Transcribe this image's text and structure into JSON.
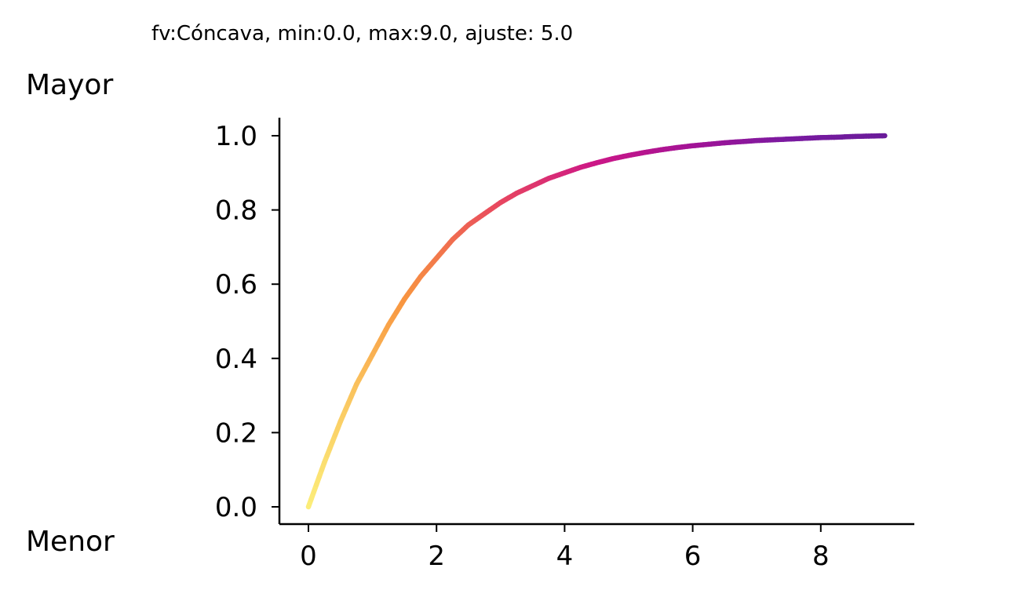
{
  "header": {
    "title": "fv:Cóncava, min:0.0, max:9.0, ajuste: 5.0"
  },
  "labels": {
    "upper": "Mayor",
    "lower": "Menor"
  },
  "chart_data": {
    "type": "line",
    "title": "fv:Cóncava, min:0.0, max:9.0, ajuste: 5.0",
    "xlabel": "",
    "ylabel": "",
    "xlim": [
      -0.45,
      9.45
    ],
    "ylim": [
      -0.045,
      1.05
    ],
    "x_ticks": [
      0,
      2,
      4,
      6,
      8
    ],
    "x_tick_labels": [
      "0",
      "2",
      "4",
      "6",
      "8"
    ],
    "y_ticks": [
      0.0,
      0.2,
      0.4,
      0.6,
      0.8,
      1.0
    ],
    "y_tick_labels": [
      "0.0",
      "0.2",
      "0.4",
      "0.6",
      "0.8",
      "1.0"
    ],
    "grid": false,
    "colormap": "plasma_r (yellow to purple)",
    "colormap_stops": [
      "#fcee7a",
      "#f89540",
      "#e8475f",
      "#cc1787",
      "#a31396",
      "#7a1aa0",
      "#6a1b9a"
    ],
    "series": [
      {
        "x": [
          0,
          0.25,
          0.5,
          0.75,
          1.0,
          1.25,
          1.5,
          1.75,
          2.0,
          2.25,
          2.5,
          2.75,
          3.0,
          3.25,
          3.5,
          3.75,
          4.0,
          4.25,
          4.5,
          4.75,
          5.0,
          5.25,
          5.5,
          5.75,
          6.0,
          6.25,
          6.5,
          6.75,
          7.0,
          7.25,
          7.5,
          7.75,
          8.0,
          8.25,
          8.5,
          8.75,
          9.0
        ],
        "values": [
          0.0,
          0.12,
          0.23,
          0.33,
          0.41,
          0.49,
          0.56,
          0.62,
          0.67,
          0.72,
          0.76,
          0.79,
          0.82,
          0.845,
          0.865,
          0.885,
          0.9,
          0.915,
          0.927,
          0.938,
          0.947,
          0.955,
          0.962,
          0.968,
          0.973,
          0.977,
          0.981,
          0.984,
          0.987,
          0.989,
          0.991,
          0.993,
          0.995,
          0.996,
          0.998,
          0.999,
          1.0
        ]
      }
    ]
  }
}
